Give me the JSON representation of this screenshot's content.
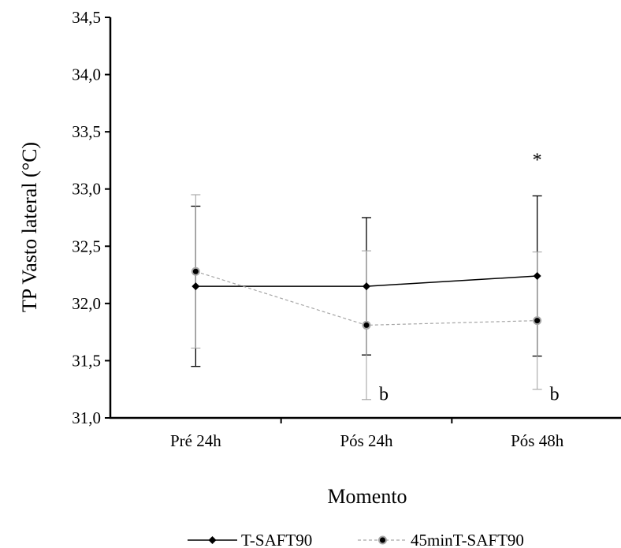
{
  "chart_data": {
    "type": "line",
    "xlabel": "Momento",
    "ylabel": "TP Vasto lateral (°C)",
    "categories": [
      "Pré 24h",
      "Pós 24h",
      "Pós 48h"
    ],
    "ylim": [
      31.0,
      34.5
    ],
    "yticks": [
      31.0,
      31.5,
      32.0,
      32.5,
      33.0,
      33.5,
      34.0,
      34.5
    ],
    "ytick_labels": [
      "31,0",
      "31,5",
      "32,0",
      "32,5",
      "33,0",
      "33,5",
      "34,0",
      "34,5"
    ],
    "grid": false,
    "legend_position": "bottom",
    "series": [
      {
        "name": "T-SAFT90",
        "values": [
          32.15,
          32.15,
          32.24
        ],
        "err_low": [
          31.45,
          31.55,
          31.54
        ],
        "err_high": [
          32.85,
          32.75,
          32.94
        ],
        "color": "#000000",
        "line_style": "solid",
        "marker": "diamond"
      },
      {
        "name": "45minT-SAFT90",
        "values": [
          32.28,
          31.81,
          31.85
        ],
        "err_low": [
          31.61,
          31.16,
          31.25
        ],
        "err_high": [
          32.95,
          32.46,
          32.45
        ],
        "color": "#a6a6a6",
        "line_style": "dashed",
        "marker": "circle"
      }
    ],
    "annotations": [
      {
        "text": "*",
        "category": 2,
        "y": 33.2
      },
      {
        "text": "b",
        "category": 1,
        "y": 31.25
      },
      {
        "text": "b",
        "category": 2,
        "y": 31.25
      }
    ]
  }
}
